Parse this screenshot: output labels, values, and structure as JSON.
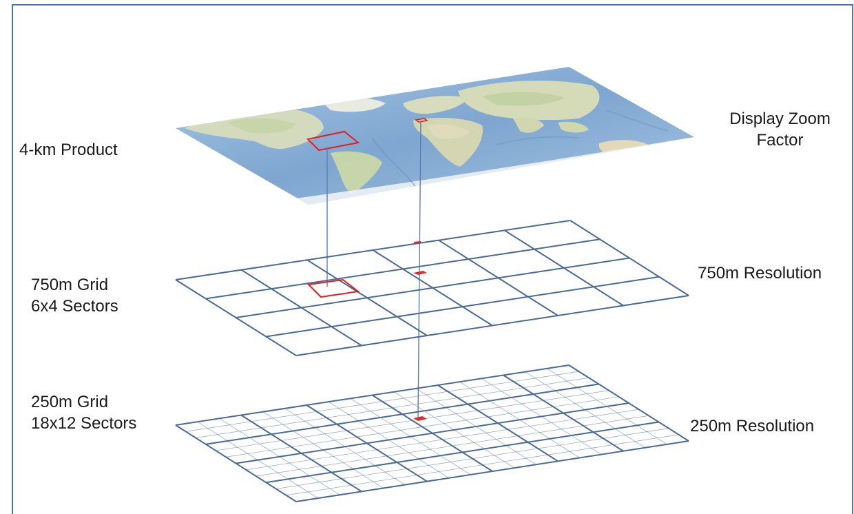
{
  "labels": {
    "product_4km": "4-km Product",
    "grid_750_line1": "750m Grid",
    "grid_750_line2": "6x4 Sectors",
    "grid_250_line1": "250m Grid",
    "grid_250_line2": "18x12 Sectors",
    "zoom_line1": "Display Zoom",
    "zoom_line2": "Factor",
    "res_750": "750m Resolution",
    "res_250": "250m Resolution"
  },
  "grids": {
    "grid_750": {
      "sectors_x": 6,
      "sectors_y": 4
    },
    "grid_250": {
      "sectors_x": 18,
      "sectors_y": 12
    }
  },
  "colors": {
    "frame": "#4a74b5",
    "grid_line": "#4a6a96",
    "highlight": "#e02020",
    "connector": "#5b7fb5",
    "ocean": "#8fb2d6",
    "land": "#d9dcc0"
  }
}
